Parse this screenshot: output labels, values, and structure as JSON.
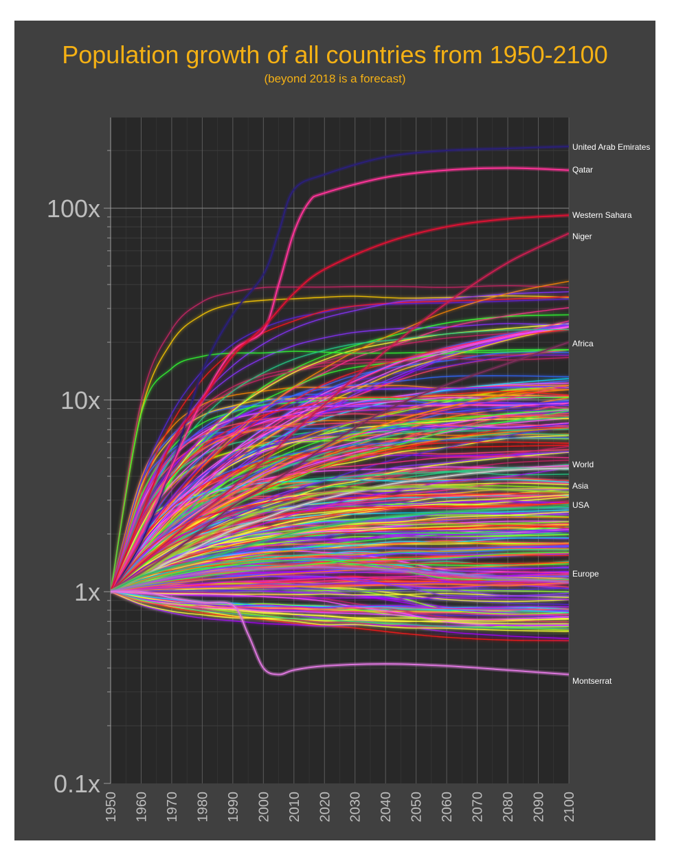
{
  "chart_data": {
    "type": "line",
    "title": "Population growth of all countries from 1950-2100",
    "subtitle": "(beyond 2018 is a forecast)",
    "xlabel": "",
    "ylabel": "",
    "y_scale": "log",
    "xlim": [
      1950,
      2100
    ],
    "ylim": [
      0.1,
      250
    ],
    "x_ticks": [
      1950,
      1960,
      1970,
      1980,
      1990,
      2000,
      2010,
      2020,
      2030,
      2040,
      2050,
      2060,
      2070,
      2080,
      2090,
      2100
    ],
    "y_ticks": [
      {
        "value": 100,
        "label": "100x"
      },
      {
        "value": 10,
        "label": "10x"
      },
      {
        "value": 1,
        "label": "1x"
      },
      {
        "value": 0.1,
        "label": "0.1x"
      }
    ],
    "grid": true,
    "background": "#282828",
    "labeled_series": [
      {
        "name": "United Arab Emirates",
        "color": "#2a1f7a",
        "points": [
          [
            1950,
            1
          ],
          [
            1960,
            1.8
          ],
          [
            1970,
            4.5
          ],
          [
            1980,
            14
          ],
          [
            1990,
            28
          ],
          [
            2000,
            45
          ],
          [
            2005,
            75
          ],
          [
            2010,
            125
          ],
          [
            2020,
            150
          ],
          [
            2040,
            185
          ],
          [
            2060,
            200
          ],
          [
            2080,
            205
          ],
          [
            2100,
            210
          ]
        ]
      },
      {
        "name": "Qatar",
        "color": "#ff3399",
        "points": [
          [
            1950,
            1
          ],
          [
            1960,
            2
          ],
          [
            1970,
            4.5
          ],
          [
            1980,
            10
          ],
          [
            1990,
            18
          ],
          [
            2000,
            23
          ],
          [
            2005,
            40
          ],
          [
            2010,
            75
          ],
          [
            2015,
            108
          ],
          [
            2020,
            120
          ],
          [
            2040,
            145
          ],
          [
            2060,
            158
          ],
          [
            2080,
            162
          ],
          [
            2100,
            158
          ]
        ]
      },
      {
        "name": "Western Sahara",
        "color": "#dd1133",
        "points": [
          [
            1950,
            1
          ],
          [
            1960,
            2.5
          ],
          [
            1970,
            6
          ],
          [
            1980,
            10
          ],
          [
            1990,
            17
          ],
          [
            2000,
            24
          ],
          [
            2010,
            36
          ],
          [
            2020,
            48
          ],
          [
            2040,
            66
          ],
          [
            2060,
            80
          ],
          [
            2080,
            88
          ],
          [
            2100,
            92
          ]
        ]
      },
      {
        "name": "Niger",
        "color": "#c81e50",
        "points": [
          [
            1950,
            1
          ],
          [
            1960,
            1.4
          ],
          [
            1970,
            1.9
          ],
          [
            1980,
            2.6
          ],
          [
            1990,
            3.5
          ],
          [
            2000,
            4.8
          ],
          [
            2010,
            6.8
          ],
          [
            2020,
            9.5
          ],
          [
            2040,
            18
          ],
          [
            2060,
            32
          ],
          [
            2080,
            52
          ],
          [
            2100,
            74
          ]
        ]
      },
      {
        "name": "Africa",
        "color": "#7a2e5a",
        "points": [
          [
            1950,
            1
          ],
          [
            1960,
            1.25
          ],
          [
            1970,
            1.6
          ],
          [
            1980,
            2.1
          ],
          [
            1990,
            2.8
          ],
          [
            2000,
            3.5
          ],
          [
            2010,
            4.4
          ],
          [
            2020,
            5.7
          ],
          [
            2040,
            8.8
          ],
          [
            2060,
            12
          ],
          [
            2080,
            15.5
          ],
          [
            2100,
            20
          ]
        ]
      },
      {
        "name": "World",
        "color": "#c8c8c8",
        "points": [
          [
            1950,
            1
          ],
          [
            1960,
            1.2
          ],
          [
            1970,
            1.45
          ],
          [
            1980,
            1.76
          ],
          [
            1990,
            2.1
          ],
          [
            2000,
            2.4
          ],
          [
            2010,
            2.75
          ],
          [
            2020,
            3.05
          ],
          [
            2040,
            3.6
          ],
          [
            2060,
            4
          ],
          [
            2080,
            4.3
          ],
          [
            2100,
            4.4
          ]
        ]
      },
      {
        "name": "Asia",
        "color": "#9acd32",
        "points": [
          [
            1950,
            1
          ],
          [
            1960,
            1.22
          ],
          [
            1970,
            1.55
          ],
          [
            1980,
            1.9
          ],
          [
            1990,
            2.3
          ],
          [
            2000,
            2.65
          ],
          [
            2010,
            2.95
          ],
          [
            2020,
            3.25
          ],
          [
            2040,
            3.5
          ],
          [
            2060,
            3.5
          ],
          [
            2080,
            3.4
          ],
          [
            2100,
            3.3
          ]
        ]
      },
      {
        "name": "USA",
        "color": "#33bb66",
        "points": [
          [
            1950,
            1
          ],
          [
            1960,
            1.2
          ],
          [
            1970,
            1.34
          ],
          [
            1980,
            1.47
          ],
          [
            1990,
            1.64
          ],
          [
            2000,
            1.84
          ],
          [
            2010,
            2.03
          ],
          [
            2020,
            2.18
          ],
          [
            2040,
            2.45
          ],
          [
            2060,
            2.6
          ],
          [
            2080,
            2.7
          ],
          [
            2100,
            2.8
          ]
        ]
      },
      {
        "name": "Europe",
        "color": "#aa66cc",
        "points": [
          [
            1950,
            1
          ],
          [
            1960,
            1.09
          ],
          [
            1970,
            1.18
          ],
          [
            1980,
            1.25
          ],
          [
            1990,
            1.3
          ],
          [
            2000,
            1.31
          ],
          [
            2010,
            1.33
          ],
          [
            2020,
            1.34
          ],
          [
            2040,
            1.3
          ],
          [
            2060,
            1.24
          ],
          [
            2080,
            1.17
          ],
          [
            2100,
            1.12
          ]
        ]
      },
      {
        "name": "Montserrat",
        "color": "#dd77dd",
        "points": [
          [
            1950,
            1
          ],
          [
            1960,
            1
          ],
          [
            1970,
            0.93
          ],
          [
            1980,
            0.88
          ],
          [
            1990,
            0.85
          ],
          [
            1995,
            0.6
          ],
          [
            2000,
            0.4
          ],
          [
            2005,
            0.37
          ],
          [
            2010,
            0.39
          ],
          [
            2020,
            0.41
          ],
          [
            2040,
            0.42
          ],
          [
            2060,
            0.41
          ],
          [
            2080,
            0.39
          ],
          [
            2100,
            0.37
          ]
        ]
      }
    ],
    "background_series_count": 230,
    "background_palette": [
      "#ff2f8f",
      "#ff1a1a",
      "#33ff33",
      "#99ff00",
      "#ffcc00",
      "#ff8800",
      "#3366ff",
      "#8833ff",
      "#ff55ff",
      "#00ddff",
      "#ffff33",
      "#cc2266",
      "#5522dd",
      "#22cc88",
      "#ff4466",
      "#aa00ff"
    ]
  }
}
